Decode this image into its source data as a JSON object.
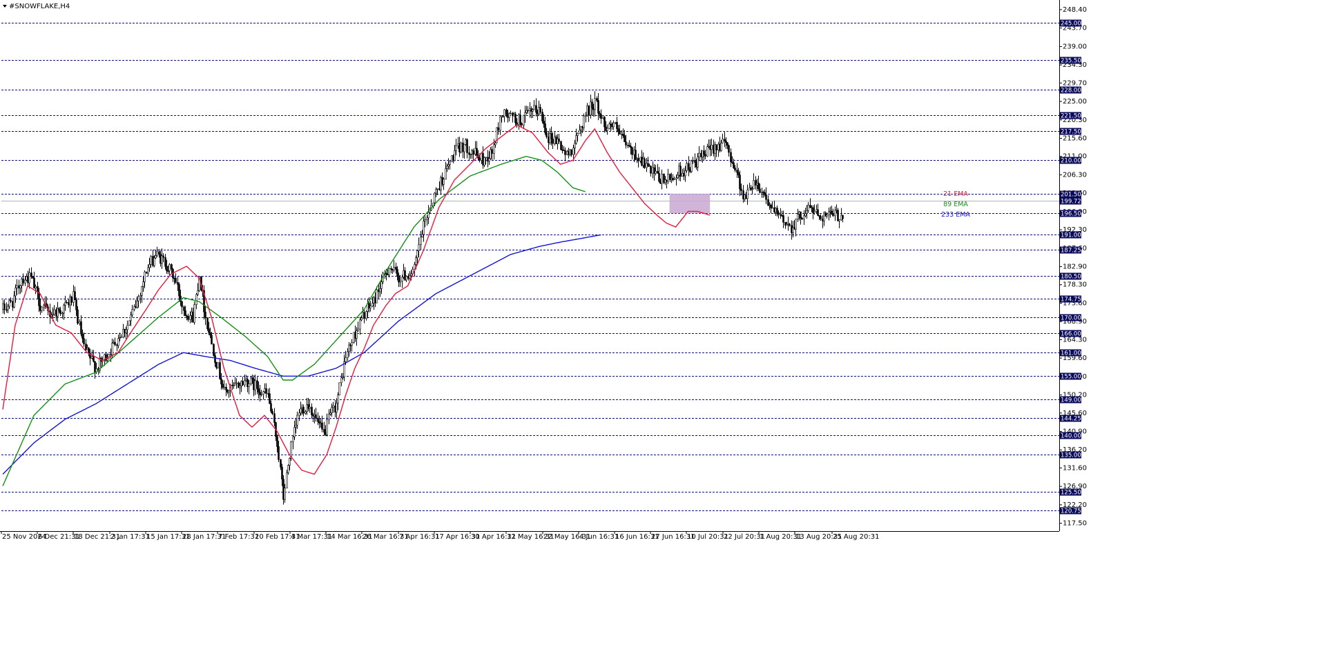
{
  "window": {
    "title": "#SNOWFLAKE,H4"
  },
  "colors": {
    "background": "#ffffff",
    "level_line": "#0a0a8c",
    "level_label_bg": "#0a0a5a",
    "ema21": "#e8193c",
    "ema89": "#129112",
    "ema233": "#1414d2",
    "zone": "#c8a8d2",
    "candle": "#000000"
  },
  "chart_data": {
    "type": "candlestick",
    "symbol": "#SNOWFLAKE",
    "timeframe": "H4",
    "ylim": [
      115.5,
      250.5
    ],
    "y_ticks": [
      "248.40",
      "243.70",
      "239.00",
      "234.30",
      "229.70",
      "225.00",
      "220.30",
      "215.60",
      "211.00",
      "206.30",
      "201.60",
      "196.90",
      "192.30",
      "187.60",
      "182.90",
      "178.30",
      "173.60",
      "168.90",
      "164.30",
      "159.60",
      "154.90",
      "150.20",
      "145.60",
      "140.90",
      "136.20",
      "131.60",
      "126.90",
      "122.20",
      "117.50"
    ],
    "level_lines": [
      "245.00",
      "235.50",
      "228.00",
      "221.50",
      "217.50",
      "210.00",
      "201.50",
      "196.50",
      "191.00",
      "187.25",
      "180.50",
      "174.75",
      "170.00",
      "166.00",
      "161.00",
      "155.00",
      "149.00",
      "144.25",
      "140.00",
      "135.00",
      "125.50",
      "120.75"
    ],
    "current_price": "199.72",
    "x_labels": [
      "25 Nov 2024",
      "6 Dec 21:31",
      "18 Dec 21:31",
      "2 Jan 17:31",
      "15 Jan 17:31",
      "28 Jan 17:31",
      "7 Feb 17:31",
      "20 Feb 17:31",
      "4 Mar 17:31",
      "14 Mar 16:31",
      "26 Mar 16:31",
      "7 Apr 16:31",
      "17 Apr 16:31",
      "30 Apr 16:31",
      "12 May 16:31",
      "22 May 16:31",
      "4 Jun 16:31",
      "16 Jun 16:31",
      "27 Jun 16:31",
      "10 Jul 20:31",
      "22 Jul 20:31",
      "1 Aug 20:31",
      "13 Aug 20:31",
      "25 Aug 20:31"
    ],
    "price_path": [
      [
        0,
        172
      ],
      [
        6,
        174
      ],
      [
        12,
        180
      ],
      [
        18,
        180
      ],
      [
        24,
        173
      ],
      [
        30,
        171
      ],
      [
        38,
        172
      ],
      [
        45,
        175
      ],
      [
        52,
        162
      ],
      [
        60,
        157
      ],
      [
        68,
        161
      ],
      [
        74,
        165
      ],
      [
        80,
        168
      ],
      [
        86,
        174
      ],
      [
        92,
        182
      ],
      [
        98,
        186
      ],
      [
        104,
        184
      ],
      [
        110,
        180
      ],
      [
        116,
        172
      ],
      [
        122,
        170
      ],
      [
        126,
        181
      ],
      [
        130,
        170
      ],
      [
        136,
        160
      ],
      [
        142,
        151
      ],
      [
        148,
        152
      ],
      [
        156,
        154
      ],
      [
        164,
        152
      ],
      [
        170,
        150
      ],
      [
        176,
        138
      ],
      [
        180,
        124
      ],
      [
        184,
        135
      ],
      [
        190,
        146
      ],
      [
        196,
        148
      ],
      [
        202,
        143
      ],
      [
        206,
        140
      ],
      [
        210,
        145
      ],
      [
        214,
        148
      ],
      [
        220,
        160
      ],
      [
        226,
        166
      ],
      [
        232,
        171
      ],
      [
        238,
        174
      ],
      [
        242,
        178
      ],
      [
        248,
        183
      ],
      [
        254,
        180
      ],
      [
        260,
        181
      ],
      [
        264,
        182
      ],
      [
        268,
        190
      ],
      [
        272,
        196
      ],
      [
        278,
        202
      ],
      [
        284,
        207
      ],
      [
        290,
        212
      ],
      [
        296,
        214
      ],
      [
        302,
        212
      ],
      [
        308,
        210
      ],
      [
        314,
        212
      ],
      [
        320,
        222
      ],
      [
        326,
        221
      ],
      [
        332,
        220
      ],
      [
        338,
        222
      ],
      [
        344,
        223
      ],
      [
        350,
        216
      ],
      [
        356,
        215
      ],
      [
        362,
        211
      ],
      [
        368,
        215
      ],
      [
        374,
        222
      ],
      [
        380,
        225
      ],
      [
        386,
        219
      ],
      [
        392,
        219
      ],
      [
        398,
        215
      ],
      [
        404,
        212
      ],
      [
        410,
        210
      ],
      [
        416,
        207
      ],
      [
        422,
        205
      ],
      [
        428,
        205
      ],
      [
        434,
        207
      ],
      [
        440,
        208
      ],
      [
        446,
        210
      ],
      [
        452,
        212
      ],
      [
        458,
        214
      ],
      [
        464,
        214
      ],
      [
        470,
        208
      ],
      [
        476,
        200
      ],
      [
        482,
        205
      ],
      [
        488,
        202
      ],
      [
        494,
        197
      ],
      [
        500,
        195
      ],
      [
        506,
        193
      ],
      [
        512,
        196
      ],
      [
        518,
        198
      ],
      [
        524,
        196
      ]
    ],
    "ema21_path": [
      [
        0,
        146.5
      ],
      [
        8,
        168
      ],
      [
        16,
        178
      ],
      [
        24,
        176
      ],
      [
        34,
        168
      ],
      [
        44,
        166
      ],
      [
        54,
        161
      ],
      [
        64,
        159
      ],
      [
        74,
        161
      ],
      [
        82,
        166
      ],
      [
        92,
        172
      ],
      [
        100,
        177
      ],
      [
        108,
        181
      ],
      [
        118,
        183
      ],
      [
        126,
        180
      ],
      [
        134,
        170
      ],
      [
        142,
        157
      ],
      [
        152,
        145
      ],
      [
        160,
        142
      ],
      [
        168,
        145
      ],
      [
        176,
        141
      ],
      [
        184,
        135
      ],
      [
        192,
        131
      ],
      [
        200,
        130
      ],
      [
        208,
        135
      ],
      [
        214,
        142
      ],
      [
        220,
        150
      ],
      [
        226,
        157
      ],
      [
        232,
        162
      ],
      [
        238,
        168
      ],
      [
        246,
        173
      ],
      [
        252,
        176
      ],
      [
        260,
        178
      ],
      [
        270,
        187
      ],
      [
        280,
        198
      ],
      [
        290,
        205
      ],
      [
        300,
        209
      ],
      [
        310,
        213
      ],
      [
        320,
        216
      ],
      [
        330,
        219
      ],
      [
        340,
        217
      ],
      [
        350,
        212
      ],
      [
        358,
        209
      ],
      [
        366,
        210
      ],
      [
        374,
        215
      ],
      [
        380,
        218
      ],
      [
        388,
        212
      ],
      [
        396,
        207
      ],
      [
        404,
        203
      ],
      [
        412,
        199
      ],
      [
        420,
        196
      ],
      [
        426,
        194
      ],
      [
        432,
        193
      ],
      [
        440,
        197
      ],
      [
        446,
        197
      ],
      [
        454,
        196
      ]
    ],
    "ema89_path": [
      [
        0,
        127
      ],
      [
        20,
        145
      ],
      [
        40,
        153
      ],
      [
        60,
        156
      ],
      [
        80,
        163
      ],
      [
        100,
        170
      ],
      [
        116,
        175
      ],
      [
        126,
        174
      ],
      [
        140,
        170
      ],
      [
        156,
        165
      ],
      [
        170,
        160
      ],
      [
        180,
        154
      ],
      [
        186,
        154
      ],
      [
        200,
        158
      ],
      [
        216,
        165
      ],
      [
        232,
        172
      ],
      [
        248,
        183
      ],
      [
        264,
        193
      ],
      [
        280,
        200
      ],
      [
        300,
        206
      ],
      [
        320,
        209
      ],
      [
        336,
        211
      ],
      [
        346,
        210
      ],
      [
        356,
        207
      ],
      [
        366,
        203
      ],
      [
        374,
        202
      ]
    ],
    "ema233_path": [
      [
        0,
        130
      ],
      [
        20,
        138
      ],
      [
        40,
        144
      ],
      [
        60,
        148
      ],
      [
        80,
        153
      ],
      [
        100,
        158
      ],
      [
        116,
        161
      ],
      [
        130,
        160
      ],
      [
        146,
        159
      ],
      [
        162,
        157
      ],
      [
        180,
        155
      ],
      [
        196,
        155
      ],
      [
        214,
        157
      ],
      [
        232,
        161
      ],
      [
        254,
        169
      ],
      [
        278,
        176
      ],
      [
        302,
        181
      ],
      [
        326,
        186
      ],
      [
        344,
        188
      ],
      [
        356,
        189
      ],
      [
        370,
        190
      ],
      [
        384,
        191
      ]
    ],
    "zone": {
      "low": 196.5,
      "high": 201.5,
      "start_candle": 428,
      "end_candle": 454
    },
    "legend": [
      "21 EMA",
      "89 EMA",
      "233 EMA"
    ]
  }
}
